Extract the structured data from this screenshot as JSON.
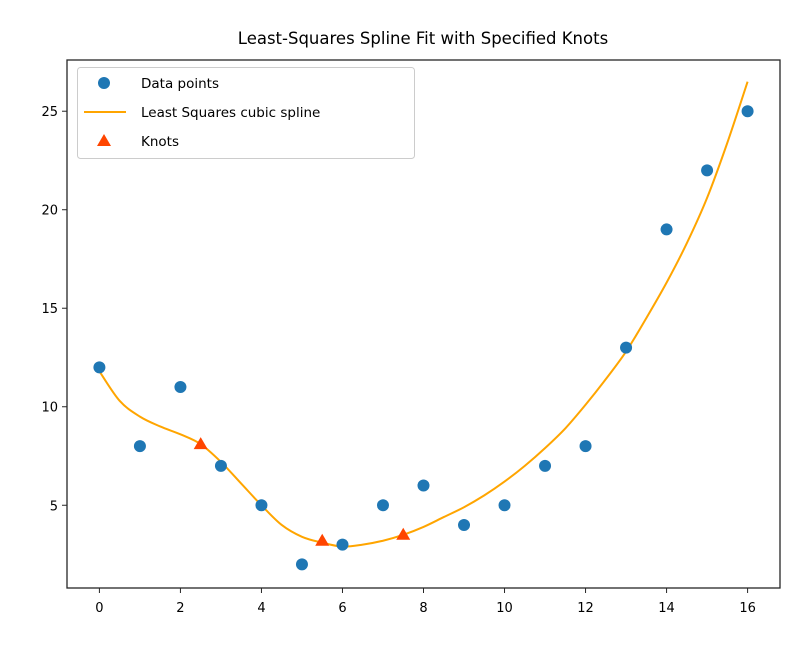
{
  "chart_data": {
    "type": "scatter",
    "title": "Least-Squares Spline Fit with Specified Knots",
    "xlabel": "",
    "ylabel": "",
    "xlim": [
      -0.8,
      16.8
    ],
    "ylim": [
      0.8,
      27.6
    ],
    "xticks": [
      0,
      2,
      4,
      6,
      8,
      10,
      12,
      14,
      16
    ],
    "yticks": [
      5,
      10,
      15,
      20,
      25
    ],
    "grid": false,
    "legend_position": "upper left",
    "series": [
      {
        "name": "Data points",
        "kind": "scatter",
        "marker": "circle",
        "color": "#1f77b4",
        "x": [
          0,
          1,
          2,
          3,
          4,
          5,
          6,
          7,
          8,
          9,
          10,
          11,
          12,
          13,
          14,
          15,
          16
        ],
        "y": [
          12,
          8,
          11,
          7,
          5,
          2,
          3,
          5,
          6,
          4,
          5,
          7,
          8,
          13,
          19,
          22,
          25
        ]
      },
      {
        "name": "Least Squares cubic spline",
        "kind": "line",
        "color": "#ffa500",
        "x": [
          0,
          0.5,
          1,
          1.5,
          2,
          2.5,
          3,
          3.5,
          4,
          4.5,
          5,
          5.5,
          6,
          6.5,
          7,
          7.5,
          8,
          8.5,
          9,
          9.5,
          10,
          10.5,
          11,
          11.5,
          12,
          12.5,
          13,
          13.5,
          14,
          14.5,
          15,
          15.5,
          16
        ],
        "y": [
          11.8,
          10.3,
          9.5,
          9.0,
          8.6,
          8.1,
          7.2,
          6.1,
          5.0,
          4.0,
          3.4,
          3.1,
          2.9,
          3.0,
          3.2,
          3.5,
          3.9,
          4.4,
          4.9,
          5.5,
          6.2,
          7.0,
          7.9,
          8.9,
          10.1,
          11.4,
          12.8,
          14.5,
          16.3,
          18.3,
          20.6,
          23.4,
          26.5
        ]
      },
      {
        "name": "Knots",
        "kind": "scatter",
        "marker": "triangle",
        "color": "#ff4500",
        "x": [
          2.5,
          5.5,
          7.5
        ],
        "y": [
          8.1,
          3.2,
          3.5
        ]
      }
    ]
  },
  "legend": {
    "items": [
      {
        "label": "Data points"
      },
      {
        "label": "Least Squares cubic spline"
      },
      {
        "label": "Knots"
      }
    ]
  }
}
